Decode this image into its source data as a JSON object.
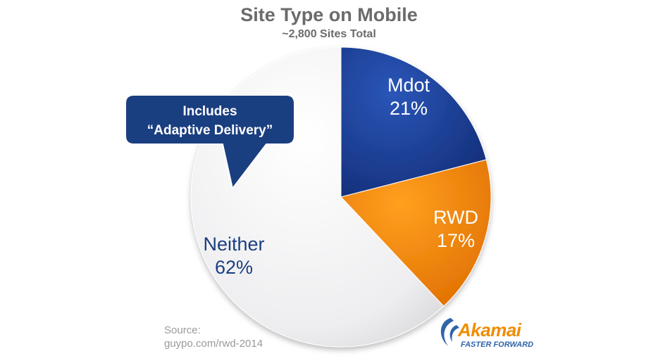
{
  "chart_data": {
    "type": "pie",
    "title": "Site Type on Mobile",
    "subtitle": "~2,800 Sites Total",
    "slices": [
      {
        "name": "Mdot",
        "value": 21,
        "label": "21%",
        "color": "#1a3f96"
      },
      {
        "name": "RWD",
        "value": 17,
        "label": "17%",
        "color": "#f28c0d"
      },
      {
        "name": "Neither",
        "value": 62,
        "label": "62%",
        "color": "#f0f0f2"
      }
    ],
    "annotation": {
      "line1": "Includes",
      "line2": "“Adaptive Delivery”",
      "color": "#1a3f80"
    }
  },
  "source": {
    "line1": "Source:",
    "line2": "guypo.com/rwd-2014"
  },
  "logo": {
    "word": "Akamai",
    "tagline": "FASTER FORWARD"
  }
}
